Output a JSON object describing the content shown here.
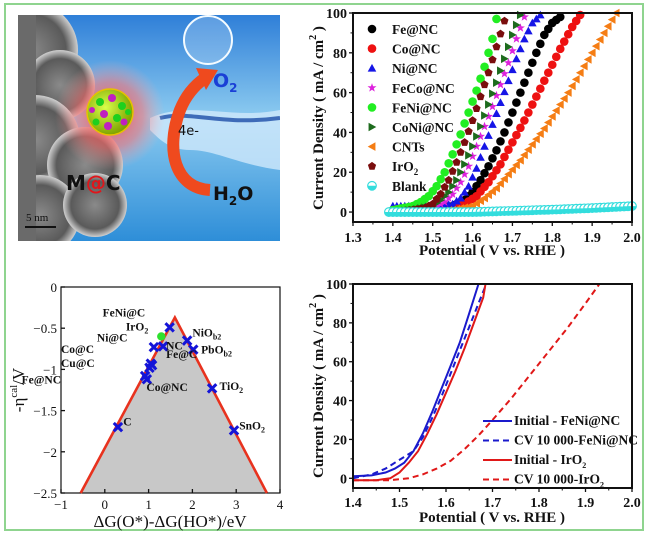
{
  "figure": {
    "border_color": "#8fd48f"
  },
  "illustration": {
    "label_mc_m": "M",
    "label_mc_at": "@",
    "label_mc_c": "C",
    "label_o2": "O",
    "label_o2_sub": "2",
    "label_h2o_h": "H",
    "label_h2o_sub": "2",
    "label_h2o_o": "O",
    "label_electrons": "4e-",
    "scale_bar": "5 nm",
    "colors": {
      "o2": "#1a3fd6",
      "at": "#e0161b",
      "arrow": "#ef4a1e"
    }
  },
  "chart_data": [
    {
      "id": "lsv-catalysts",
      "type": "scatter",
      "title": "",
      "xlabel": "Potential ( V vs. RHE )",
      "ylabel": "Current Density ( mA / cm",
      "ylabel_sup": "2",
      "ylabel_tail": " )",
      "xlim": [
        1.3,
        2.0
      ],
      "ylim": [
        -5,
        100
      ],
      "xticks": [
        "1.3",
        "1.4",
        "1.5",
        "1.6",
        "1.7",
        "1.8",
        "1.9",
        "2.0"
      ],
      "yticks": [
        "0",
        "20",
        "40",
        "60",
        "80",
        "100"
      ],
      "legend_position": "top-left",
      "series": [
        {
          "name": "Fe@NC",
          "marker": "circle",
          "color": "#000000",
          "x": [
            1.4,
            1.45,
            1.5,
            1.55,
            1.58,
            1.6,
            1.62,
            1.64,
            1.66,
            1.68,
            1.7,
            1.72,
            1.74,
            1.76,
            1.78,
            1.8,
            1.82
          ],
          "y": [
            1,
            1,
            2,
            3,
            6,
            10,
            16,
            23,
            31,
            40,
            50,
            60,
            70,
            80,
            89,
            95,
            98
          ]
        },
        {
          "name": "Co@NC",
          "marker": "circle",
          "color": "#ee1111",
          "x": [
            1.4,
            1.45,
            1.5,
            1.55,
            1.58,
            1.61,
            1.64,
            1.67,
            1.7,
            1.73,
            1.76,
            1.79,
            1.82,
            1.85,
            1.87
          ],
          "y": [
            0,
            0,
            1,
            2,
            4,
            8,
            15,
            24,
            35,
            46,
            58,
            70,
            82,
            93,
            99
          ]
        },
        {
          "name": "Ni@NC",
          "marker": "triangle",
          "color": "#1515e6",
          "x": [
            1.4,
            1.45,
            1.5,
            1.55,
            1.57,
            1.59,
            1.61,
            1.63,
            1.65,
            1.67,
            1.69,
            1.71,
            1.73,
            1.75,
            1.77
          ],
          "y": [
            3,
            3,
            3,
            4,
            7,
            13,
            22,
            33,
            44,
            55,
            66,
            77,
            87,
            95,
            99
          ]
        },
        {
          "name": "FeCo@NC",
          "marker": "star",
          "color": "#dd22dd",
          "x": [
            1.4,
            1.45,
            1.5,
            1.53,
            1.55,
            1.57,
            1.59,
            1.61,
            1.63,
            1.65,
            1.67,
            1.69,
            1.71,
            1.73
          ],
          "y": [
            0,
            1,
            2,
            5,
            9,
            15,
            23,
            33,
            43,
            53,
            64,
            75,
            87,
            98
          ]
        },
        {
          "name": "FeNi@NC",
          "marker": "circle",
          "color": "#22ee22",
          "x": [
            1.4,
            1.45,
            1.47,
            1.49,
            1.51,
            1.53,
            1.55,
            1.57,
            1.59,
            1.61,
            1.63,
            1.65,
            1.66
          ],
          "y": [
            1,
            3,
            5,
            8,
            13,
            20,
            29,
            39,
            50,
            61,
            73,
            87,
            97
          ]
        },
        {
          "name": "CoNi@NC",
          "marker": "triangle-right",
          "color": "#1d6b1d",
          "x": [
            1.4,
            1.45,
            1.5,
            1.52,
            1.54,
            1.56,
            1.58,
            1.6,
            1.62,
            1.64,
            1.66,
            1.68,
            1.7,
            1.72
          ],
          "y": [
            0,
            1,
            3,
            6,
            10,
            16,
            24,
            33,
            43,
            54,
            65,
            77,
            89,
            99
          ]
        },
        {
          "name": "CNTs",
          "marker": "triangle-left",
          "color": "#f57d14",
          "x": [
            1.4,
            1.5,
            1.55,
            1.6,
            1.63,
            1.66,
            1.69,
            1.72,
            1.75,
            1.78,
            1.81,
            1.84,
            1.87,
            1.9,
            1.93,
            1.96
          ],
          "y": [
            0,
            0,
            1,
            3,
            7,
            12,
            19,
            26,
            34,
            42,
            51,
            60,
            70,
            80,
            90,
            100
          ]
        },
        {
          "name": "IrO",
          "name_sub": "2",
          "marker": "pentagon",
          "color": "#7a0d0d",
          "x": [
            1.4,
            1.45,
            1.48,
            1.5,
            1.52,
            1.54,
            1.56,
            1.58,
            1.6,
            1.62,
            1.64,
            1.66,
            1.68
          ],
          "y": [
            0,
            1,
            2,
            4,
            9,
            16,
            25,
            35,
            46,
            58,
            70,
            83,
            96
          ]
        },
        {
          "name": "Blank",
          "marker": "half-circle",
          "color": "#33dddd",
          "x": [
            1.39,
            1.45,
            1.5,
            1.55,
            1.6,
            1.65,
            1.7,
            1.75,
            1.8,
            1.85,
            1.9,
            1.95,
            2.0
          ],
          "y": [
            0,
            0,
            0,
            0,
            0,
            0.3,
            0.6,
            0.9,
            1.2,
            1.6,
            2.0,
            2.5,
            3.0
          ]
        }
      ]
    },
    {
      "id": "volcano-plot",
      "type": "scatter",
      "title": "",
      "xlabel": "ΔG(O*)-ΔG(HO*)/eV",
      "ylabel": "-η",
      "ylabel_sup": "cal",
      "ylabel_tail": "/V",
      "xlim": [
        -1,
        4
      ],
      "ylim": [
        -2.5,
        0
      ],
      "xticks": [
        "−1",
        "0",
        "1",
        "2",
        "3",
        "4"
      ],
      "yticks": [
        "0",
        "−0.5",
        "−1",
        "−1.5",
        "−2",
        "−2.5"
      ],
      "volcano_line": {
        "color": "#e8321e",
        "x": [
          -0.55,
          1.6,
          3.7
        ],
        "y": [
          -2.5,
          -0.37,
          -2.5
        ]
      },
      "fill_color": "#c8c8c8",
      "points": [
        {
          "label": "FeNi@C",
          "x": 1.48,
          "y": -0.49,
          "marker": "x",
          "color": "#1414d8"
        },
        {
          "label": "IrO",
          "label_sub": "2",
          "x": 1.29,
          "y": -0.6,
          "marker": "circle",
          "color": "#2ee02e"
        },
        {
          "label": "Ni@C",
          "x": 1.12,
          "y": -0.73,
          "marker": "x",
          "color": "#1414d8"
        },
        {
          "label": "NC",
          "x": 1.33,
          "y": -0.72,
          "marker": "x",
          "color": "#1414d8"
        },
        {
          "label": "Co@C",
          "x": 1.05,
          "y": -0.93,
          "marker": "x",
          "color": "#1414d8"
        },
        {
          "label": "Cu@C",
          "x": 1.02,
          "y": -0.98,
          "marker": "x",
          "color": "#1414d8"
        },
        {
          "label": "Fe@NC",
          "x": 0.92,
          "y": -1.08,
          "marker": "x",
          "color": "#1414d8"
        },
        {
          "label": "Co@NC",
          "x": 0.96,
          "y": -1.12,
          "marker": "x",
          "color": "#1414d8"
        },
        {
          "label": "Fe@C",
          "x": 1.08,
          "y": -0.95,
          "marker": "x",
          "color": "#1414d8"
        },
        {
          "label": "NiO",
          "label_sub": "b2",
          "x": 1.88,
          "y": -0.65,
          "marker": "x",
          "color": "#1414d8"
        },
        {
          "label": "PbO",
          "label_sub": "b2",
          "x": 2.02,
          "y": -0.76,
          "marker": "x",
          "color": "#1414d8"
        },
        {
          "label": "TiO",
          "label_sub": "2",
          "x": 2.45,
          "y": -1.23,
          "marker": "x",
          "color": "#1414d8"
        },
        {
          "label": "C",
          "x": 0.3,
          "y": -1.7,
          "marker": "x",
          "color": "#1414d8"
        },
        {
          "label": "SnO",
          "label_sub": "2",
          "x": 2.95,
          "y": -1.74,
          "marker": "x",
          "color": "#1414d8"
        }
      ],
      "annotations": [
        {
          "text": "FeNi@C",
          "sub": "",
          "x": -0.05,
          "y": -0.36,
          "color": "#111111"
        },
        {
          "text": "IrO",
          "sub": "2",
          "x": 0.48,
          "y": -0.53,
          "color": "#2ee02e"
        },
        {
          "text": "Ni@C",
          "sub": "",
          "x": -0.18,
          "y": -0.66,
          "color": "#111111"
        },
        {
          "text": "NC",
          "sub": "",
          "x": 1.4,
          "y": -0.76,
          "color": "#111111"
        },
        {
          "text": "Co@C",
          "sub": "",
          "x": -1.0,
          "y": -0.8,
          "color": "#111111"
        },
        {
          "text": "Fe@C",
          "sub": "",
          "x": 1.4,
          "y": -0.86,
          "color": "#111111"
        },
        {
          "text": "Cu@C",
          "sub": "",
          "x": -1.0,
          "y": -0.97,
          "color": "#111111"
        },
        {
          "text": "Fe@NC",
          "sub": "",
          "x": -1.9,
          "y": -1.17,
          "color": "#111111"
        },
        {
          "text": "Co@NC",
          "sub": "",
          "x": 0.95,
          "y": -1.26,
          "color": "#111111"
        },
        {
          "text": "NiO",
          "sub": "b2",
          "x": 2.0,
          "y": -0.6,
          "color": "#111111"
        },
        {
          "text": "PbO",
          "sub": "b2",
          "x": 2.2,
          "y": -0.81,
          "color": "#111111"
        },
        {
          "text": "TiO",
          "sub": "2",
          "x": 2.62,
          "y": -1.25,
          "color": "#111111"
        },
        {
          "text": "C",
          "sub": "",
          "x": 0.42,
          "y": -1.68,
          "color": "#111111"
        },
        {
          "text": "SnO",
          "sub": "2",
          "x": 3.07,
          "y": -1.73,
          "color": "#111111"
        }
      ]
    },
    {
      "id": "stability-lsv",
      "type": "line",
      "title": "",
      "xlabel": "Potential ( V vs. RHE )",
      "ylabel": "Current Density ( mA / cm",
      "ylabel_sup": "2",
      "ylabel_tail": " )",
      "xlim": [
        1.4,
        2.0
      ],
      "ylim": [
        -5,
        100
      ],
      "xticks": [
        "1.4",
        "1.5",
        "1.6",
        "1.7",
        "1.8",
        "1.9",
        "2.0"
      ],
      "yticks": [
        "0",
        "20",
        "40",
        "60",
        "80",
        "100"
      ],
      "legend_position": "bottom-right",
      "series": [
        {
          "name": "Initial - FeNi@NC",
          "name_sub": "",
          "style": "solid",
          "color": "#1a1acc",
          "x": [
            1.4,
            1.44,
            1.47,
            1.49,
            1.51,
            1.53,
            1.55,
            1.57,
            1.59,
            1.61,
            1.63,
            1.65,
            1.67
          ],
          "y": [
            1,
            1.5,
            3,
            5,
            8,
            14,
            23,
            34,
            46,
            58,
            70,
            85,
            100
          ]
        },
        {
          "name": "CV 10 000-FeNi@NC",
          "name_sub": "",
          "style": "dashed",
          "color": "#1a1acc",
          "x": [
            1.4,
            1.44,
            1.47,
            1.49,
            1.51,
            1.53,
            1.55,
            1.57,
            1.59,
            1.61,
            1.63,
            1.65,
            1.67,
            1.685
          ],
          "y": [
            0,
            2,
            5,
            8,
            11,
            14,
            21,
            31,
            42,
            54,
            66,
            78,
            90,
            99
          ]
        },
        {
          "name": "Initial - IrO",
          "name_sub": "2",
          "style": "solid",
          "color": "#e01818",
          "x": [
            1.4,
            1.45,
            1.48,
            1.5,
            1.52,
            1.54,
            1.56,
            1.58,
            1.6,
            1.62,
            1.64,
            1.66,
            1.68,
            1.685
          ],
          "y": [
            -1,
            -1,
            0,
            3,
            8,
            14,
            23,
            33,
            44,
            55,
            67,
            80,
            93,
            100
          ]
        },
        {
          "name": "CV 10 000-IrO",
          "name_sub": "2",
          "style": "dashed",
          "color": "#e01818",
          "x": [
            1.4,
            1.48,
            1.52,
            1.55,
            1.58,
            1.61,
            1.64,
            1.67,
            1.7,
            1.74,
            1.78,
            1.82,
            1.86,
            1.9,
            1.93
          ],
          "y": [
            -1,
            -1,
            0,
            2,
            5,
            9,
            15,
            22,
            30,
            41,
            53,
            65,
            77,
            90,
            100
          ]
        }
      ]
    }
  ]
}
